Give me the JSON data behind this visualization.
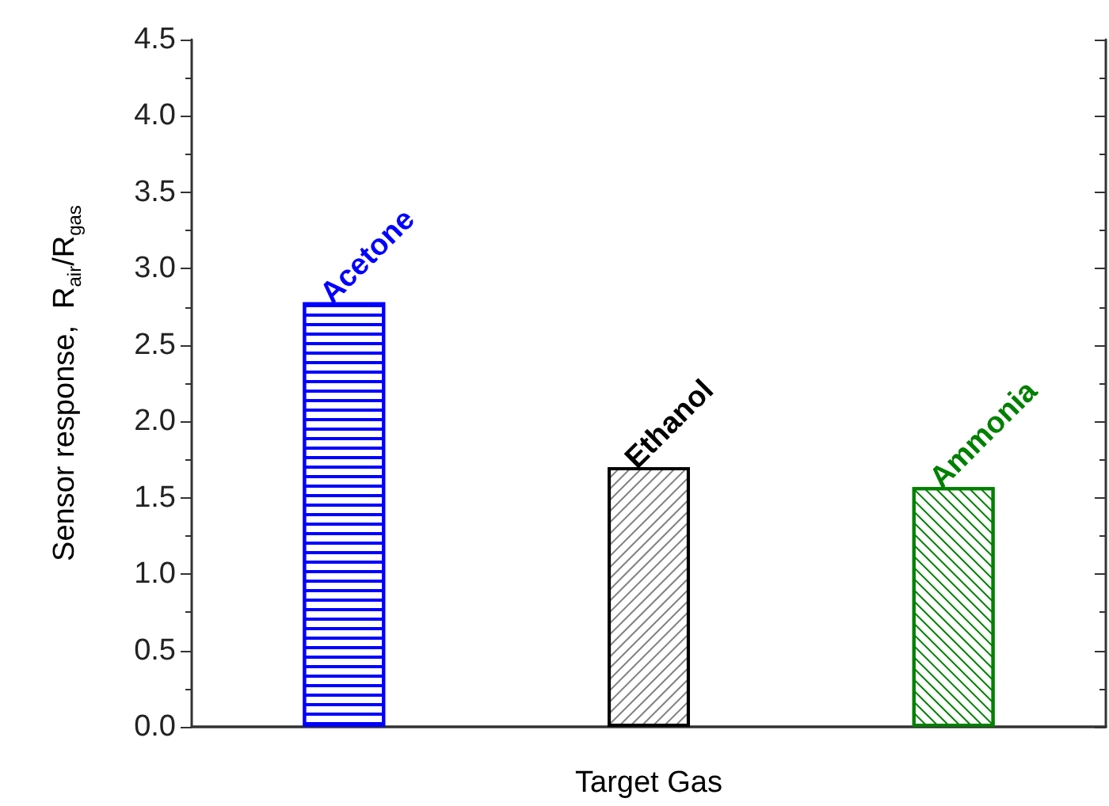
{
  "chart_data": {
    "type": "bar",
    "xlabel": "Target Gas",
    "ylabel": "Sensor response,  R$_{air}$/R$_{gas}$",
    "categories": [
      "Acetone",
      "Ethanol",
      "Ammonia"
    ],
    "values": [
      2.78,
      1.7,
      1.57
    ],
    "colors": [
      "#0000ff",
      "#000000",
      "#008000"
    ],
    "ylim": [
      0,
      4.5
    ],
    "yticks": [
      {
        "value": 0,
        "label": "0.0"
      },
      0.5,
      {
        "value": 1,
        "label": "1.0"
      },
      1.5,
      {
        "value": 2,
        "label": "2.0"
      },
      2.5,
      {
        "value": 3,
        "label": "3.0"
      },
      3.5,
      {
        "value": 4,
        "label": "4.0"
      },
      4.5
    ],
    "grid": false
  }
}
